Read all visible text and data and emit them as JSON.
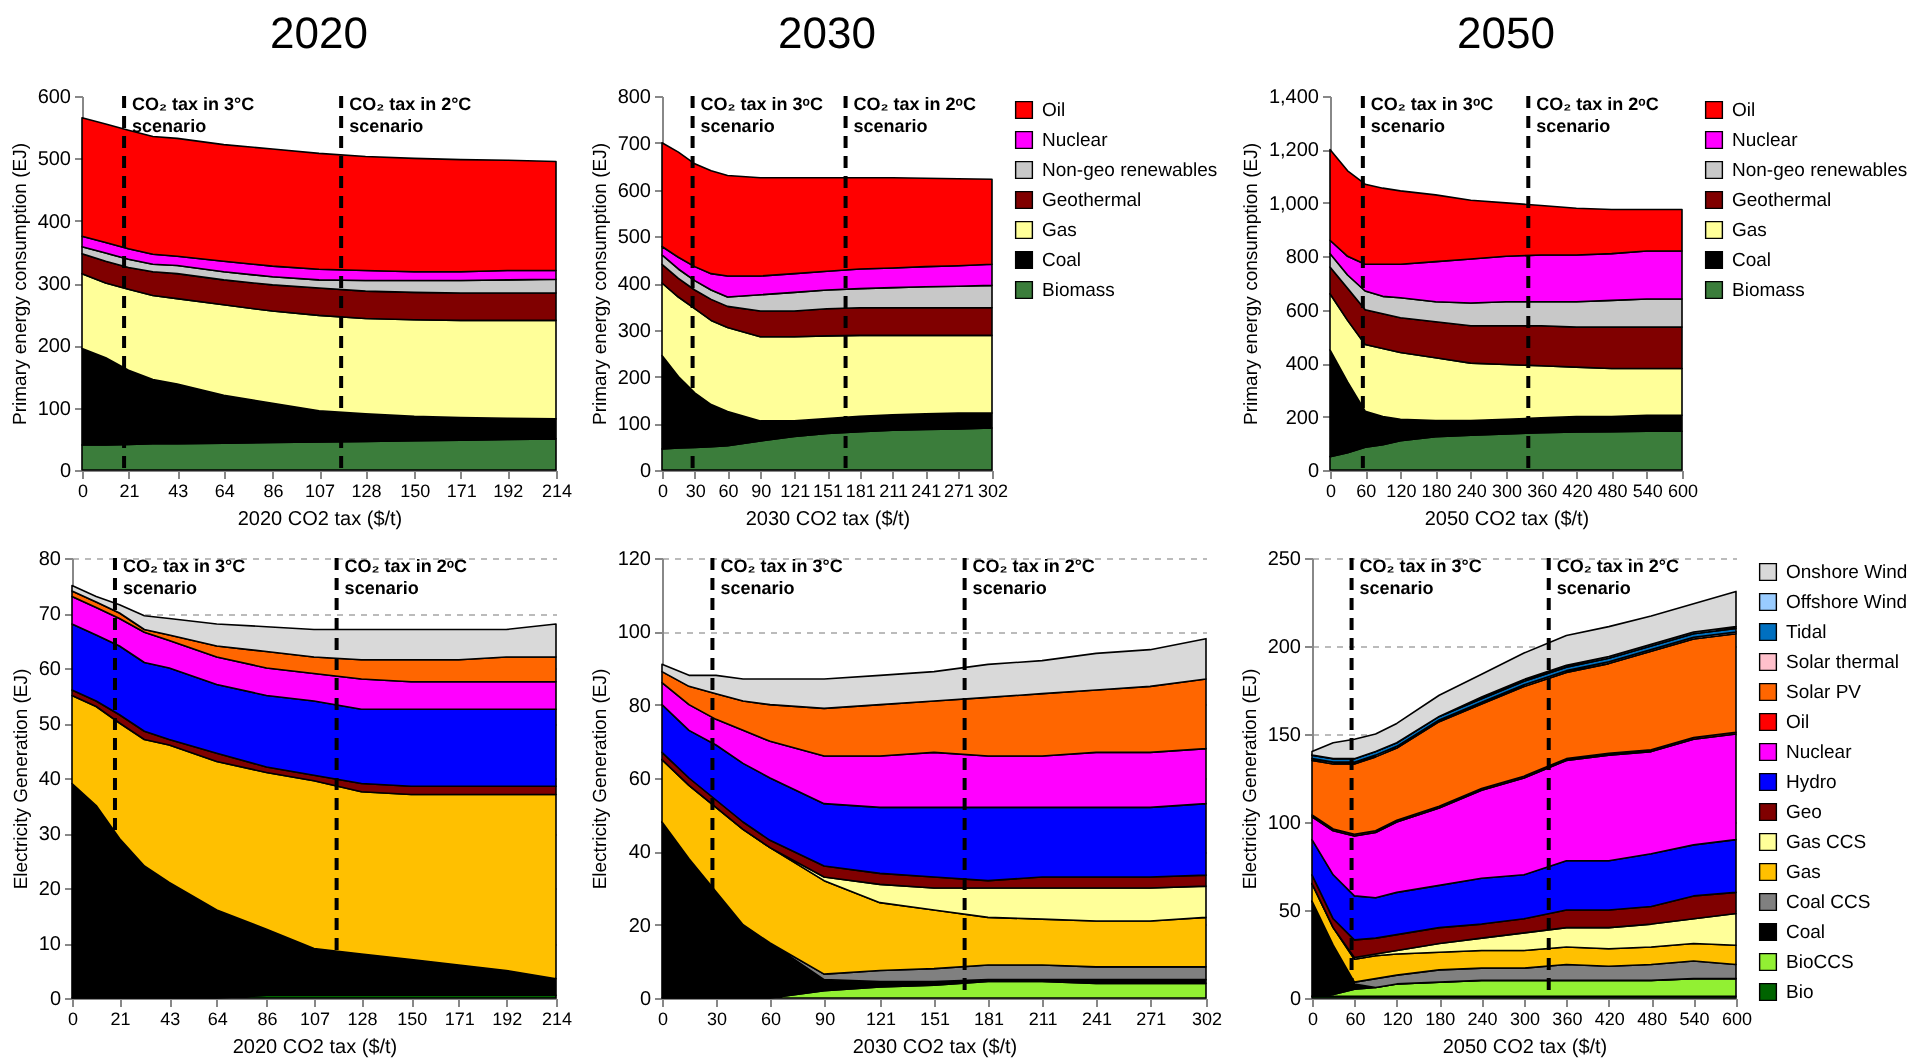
{
  "chart_data": [
    {
      "type": "area",
      "title": "2020",
      "xlabel": "2020 CO2 tax ($/t)",
      "ylabel": "Primary energy consumption (EJ)",
      "stacked": true,
      "x": [
        0,
        10.7,
        21,
        32,
        43,
        64,
        86,
        107,
        128,
        150,
        171,
        192,
        214
      ],
      "xlim": [
        0,
        214
      ],
      "xticks": [
        0,
        21,
        43,
        64,
        86,
        107,
        128,
        150,
        171,
        192,
        214
      ],
      "ylim": [
        0,
        600
      ],
      "yticks": [
        0,
        100,
        200,
        300,
        400,
        500,
        600
      ],
      "ref_lines": [
        {
          "axis": "x",
          "value": 19,
          "label": "CO₂ tax in 3°C\nscenario",
          "color": "#000000",
          "line_style": "dashed"
        },
        {
          "axis": "x",
          "value": 117,
          "label": "CO₂ tax in 2°C\nscenario",
          "color": "#000000",
          "line_style": "dashed"
        }
      ],
      "series": [
        {
          "color": "#3b7d3b",
          "values": [
            40,
            40,
            41,
            42,
            42,
            43,
            44,
            45,
            46,
            47,
            48,
            49,
            50
          ]
        },
        {
          "color": "#000000",
          "values": [
            155,
            140,
            119,
            103,
            96,
            77,
            63,
            50,
            44,
            39,
            36,
            34,
            32
          ]
        },
        {
          "color": "#ffff99",
          "values": [
            120,
            120,
            130,
            135,
            137,
            145,
            148,
            153,
            153,
            155,
            156,
            157,
            158
          ]
        },
        {
          "color": "#800000",
          "values": [
            32,
            35,
            35,
            38,
            40,
            40,
            42,
            44,
            44,
            44,
            44,
            44,
            44
          ]
        },
        {
          "color": "#c8c8c8",
          "values": [
            11,
            13,
            13,
            12,
            13,
            13,
            13,
            13,
            17,
            19,
            20,
            21,
            22
          ]
        },
        {
          "color": "#ff00ff",
          "values": [
            17,
            17,
            17,
            16,
            15,
            17,
            17,
            17,
            16,
            14,
            14,
            15,
            14
          ]
        },
        {
          "color": "#ff0000",
          "values": [
            190,
            190,
            190,
            189,
            189,
            187,
            188,
            186,
            183,
            182,
            180,
            177,
            175
          ]
        }
      ]
    },
    {
      "type": "area",
      "title": "2030",
      "xlabel": "2030 CO2 tax ($/t)",
      "ylabel": "Primary energy consumption (EJ)",
      "stacked": true,
      "legend": "right",
      "x": [
        0,
        15,
        30,
        45,
        60,
        90,
        121,
        151,
        181,
        211,
        241,
        271,
        302
      ],
      "xlim": [
        0,
        302
      ],
      "xticks": [
        0,
        30,
        60,
        90,
        121,
        151,
        181,
        211,
        241,
        271,
        302
      ],
      "ylim": [
        0,
        800
      ],
      "yticks": [
        0,
        100,
        200,
        300,
        400,
        500,
        600,
        700,
        800
      ],
      "ref_lines": [
        {
          "axis": "x",
          "value": 28,
          "label": "CO₂ tax in 3ᵒC\nscenario",
          "color": "#000000",
          "line_style": "dashed"
        },
        {
          "axis": "x",
          "value": 168,
          "label": "CO₂ tax in 2ᵒC\nscenario",
          "color": "#000000",
          "line_style": "dashed"
        }
      ],
      "series": [
        {
          "name": "Biomass",
          "color": "#3b7d3b",
          "values": [
            45,
            47,
            48,
            50,
            52,
            62,
            72,
            78,
            82,
            85,
            87,
            88,
            90
          ]
        },
        {
          "name": "Coal",
          "color": "#000000",
          "values": [
            200,
            153,
            117,
            90,
            73,
            43,
            33,
            32,
            33,
            33,
            33,
            34,
            32
          ]
        },
        {
          "name": "Gas",
          "color": "#ffff99",
          "values": [
            155,
            170,
            180,
            180,
            180,
            180,
            180,
            177,
            173,
            170,
            168,
            166,
            166
          ]
        },
        {
          "name": "Geothermal",
          "color": "#800000",
          "values": [
            40,
            40,
            40,
            45,
            45,
            55,
            55,
            58,
            59,
            59,
            59,
            59,
            59
          ]
        },
        {
          "name": "Non-geo renewables",
          "color": "#c8c8c8",
          "values": [
            20,
            20,
            20,
            20,
            20,
            35,
            40,
            40,
            41,
            43,
            45,
            46,
            48
          ]
        },
        {
          "name": "Nuclear",
          "color": "#ff00ff",
          "values": [
            18,
            25,
            30,
            35,
            45,
            40,
            40,
            40,
            42,
            42,
            43,
            44,
            45
          ]
        },
        {
          "name": "Oil",
          "color": "#ff0000",
          "values": [
            222,
            225,
            220,
            220,
            215,
            210,
            205,
            200,
            195,
            193,
            189,
            186,
            182
          ]
        }
      ]
    },
    {
      "type": "area",
      "title": "2050",
      "xlabel": "2050 CO2 tax ($/t)",
      "ylabel": "Primary energy consumption (EJ)",
      "stacked": true,
      "legend": "right",
      "x": [
        0,
        30,
        60,
        90,
        120,
        180,
        240,
        300,
        360,
        420,
        480,
        540,
        600
      ],
      "xlim": [
        0,
        600
      ],
      "xticks": [
        0,
        60,
        120,
        180,
        240,
        300,
        360,
        420,
        480,
        540,
        600
      ],
      "ylim": [
        0,
        1400
      ],
      "yticks": [
        0,
        200,
        400,
        600,
        800,
        {
          "value": 1000,
          "label": "1,000"
        },
        {
          "value": 1200,
          "label": "1,200"
        },
        {
          "value": 1400,
          "label": "1,400"
        }
      ],
      "ref_lines": [
        {
          "axis": "x",
          "value": 56,
          "label": "CO₂ tax in 3ᵒC\nscenario",
          "color": "#000000",
          "line_style": "dashed"
        },
        {
          "axis": "x",
          "value": 338,
          "label": "CO₂ tax in 2ᵒC\nscenario",
          "color": "#000000",
          "line_style": "dashed"
        }
      ],
      "series": [
        {
          "name": "Biomass",
          "color": "#3b7d3b",
          "values": [
            50,
            65,
            85,
            95,
            110,
            125,
            130,
            135,
            140,
            142,
            143,
            145,
            145
          ]
        },
        {
          "name": "Coal",
          "color": "#000000",
          "values": [
            400,
            265,
            135,
            105,
            80,
            60,
            55,
            55,
            55,
            58,
            57,
            60,
            60
          ]
        },
        {
          "name": "Gas",
          "color": "#ffff99",
          "values": [
            210,
            230,
            250,
            255,
            250,
            235,
            215,
            205,
            195,
            185,
            180,
            175,
            175
          ]
        },
        {
          "name": "Geothermal",
          "color": "#800000",
          "values": [
            100,
            120,
            130,
            130,
            130,
            135,
            140,
            145,
            150,
            150,
            155,
            155,
            155
          ]
        },
        {
          "name": "Non-geo renewables",
          "color": "#c8c8c8",
          "values": [
            50,
            50,
            70,
            65,
            75,
            75,
            85,
            90,
            90,
            95,
            100,
            105,
            105
          ]
        },
        {
          "name": "Nuclear",
          "color": "#ff00ff",
          "values": [
            50,
            70,
            100,
            120,
            125,
            150,
            165,
            170,
            175,
            175,
            175,
            180,
            180
          ]
        },
        {
          "name": "Oil",
          "color": "#ff0000",
          "values": [
            340,
            320,
            300,
            285,
            275,
            250,
            220,
            200,
            185,
            175,
            165,
            155,
            155
          ]
        }
      ]
    },
    {
      "type": "area",
      "xlabel": "2020 CO2 tax ($/t)",
      "ylabel": "Electricity Generation (EJ)",
      "stacked": true,
      "grid": "y",
      "x": [
        0,
        10.7,
        21,
        32,
        43,
        64,
        86,
        107,
        128,
        150,
        171,
        192,
        214
      ],
      "xlim": [
        0,
        214
      ],
      "xticks": [
        0,
        21,
        43,
        64,
        86,
        107,
        128,
        150,
        171,
        192,
        214
      ],
      "ylim": [
        0,
        80
      ],
      "yticks": [
        0,
        10,
        20,
        30,
        40,
        50,
        60,
        70,
        80
      ],
      "ref_lines": [
        {
          "axis": "x",
          "value": 19,
          "label": "CO₂ tax in 3°C\nscenario",
          "color": "#000000",
          "line_style": "dashed"
        },
        {
          "axis": "x",
          "value": 117,
          "label": "CO₂ tax in 2ᵒC\nscenario",
          "color": "#000000",
          "line_style": "dashed"
        }
      ],
      "series": [
        {
          "color": "#006400",
          "values": [
            0,
            0,
            0,
            0,
            0,
            0,
            0.5,
            0.5,
            0.5,
            0.5,
            0.5,
            0.5,
            0.5
          ]
        },
        {
          "color": "#000000",
          "values": [
            39,
            35,
            29,
            24,
            21,
            16,
            12,
            8.5,
            7.5,
            6.5,
            5.5,
            4.5,
            3
          ]
        },
        {
          "color": "#ffc000",
          "values": [
            16,
            18,
            21,
            23,
            25,
            27,
            28.5,
            30.5,
            29.5,
            30,
            31,
            32,
            33.5
          ]
        },
        {
          "color": "#800000",
          "values": [
            1,
            1,
            1.5,
            1.5,
            1,
            1.5,
            1,
            1,
            1.5,
            1.5,
            1.5,
            1.5,
            1.5
          ]
        },
        {
          "color": "#0000ff",
          "values": [
            12,
            12,
            12.5,
            12.5,
            13,
            12.5,
            13,
            13.5,
            13.5,
            14,
            14,
            14,
            14
          ]
        },
        {
          "color": "#ff00ff",
          "values": [
            5,
            5,
            5,
            5.5,
            5,
            5,
            5,
            5,
            5.5,
            5,
            5,
            5,
            5
          ]
        },
        {
          "color": "#ff6600",
          "values": [
            1,
            1,
            1,
            0.5,
            1,
            2,
            3,
            3,
            3.5,
            4,
            4,
            4.5,
            4.5
          ]
        },
        {
          "color": "#d9d9d9",
          "values": [
            1,
            1,
            1.5,
            2.5,
            3,
            4,
            4.5,
            5,
            5.5,
            5.5,
            5.5,
            5,
            6
          ]
        }
      ]
    },
    {
      "type": "area",
      "xlabel": "2030 CO2 tax ($/t)",
      "ylabel": "Electricity Generation (EJ)",
      "stacked": true,
      "grid": "y",
      "x": [
        0,
        15,
        30,
        45,
        60,
        90,
        121,
        151,
        181,
        211,
        241,
        271,
        302
      ],
      "xlim": [
        0,
        302
      ],
      "xticks": [
        0,
        30,
        60,
        90,
        121,
        151,
        181,
        211,
        241,
        271,
        302
      ],
      "ylim": [
        0,
        120
      ],
      "yticks": [
        0,
        20,
        40,
        60,
        80,
        100,
        120
      ],
      "ref_lines": [
        {
          "axis": "x",
          "value": 28,
          "label": "CO₂ tax in 3°C\nscenario",
          "color": "#000000",
          "line_style": "dashed"
        },
        {
          "axis": "x",
          "value": 168,
          "label": "CO₂ tax in 2°C\nscenario",
          "color": "#000000",
          "line_style": "dashed"
        }
      ],
      "series": [
        {
          "color": "#92f033",
          "values": [
            0,
            0,
            0,
            0,
            0,
            2,
            3,
            3.5,
            4.5,
            4.5,
            4,
            4,
            4
          ]
        },
        {
          "color": "#000000",
          "values": [
            48,
            38,
            29,
            20,
            15,
            3,
            1.5,
            1,
            0.5,
            0.5,
            1,
            1,
            1
          ]
        },
        {
          "color": "#808080",
          "values": [
            0,
            0,
            0,
            0,
            0,
            1.5,
            3,
            3.5,
            4,
            4,
            3.5,
            3.5,
            3.5
          ]
        },
        {
          "color": "#ffc000",
          "values": [
            17,
            20,
            23,
            26,
            26,
            25.5,
            18.5,
            16,
            13,
            12.5,
            12.5,
            12.5,
            13.5
          ]
        },
        {
          "color": "#ffff99",
          "values": [
            0,
            0,
            0,
            0,
            0,
            1,
            5,
            6,
            8,
            8.5,
            9,
            9,
            8.5
          ]
        },
        {
          "color": "#800000",
          "values": [
            2,
            2,
            2,
            2,
            2,
            3,
            3,
            3,
            2,
            3,
            3,
            3,
            3
          ]
        },
        {
          "color": "#0000ff",
          "values": [
            13,
            13,
            15,
            16,
            17,
            17,
            18,
            19,
            20,
            19,
            19,
            19,
            19.5
          ]
        },
        {
          "color": "#ff00ff",
          "values": [
            6,
            7,
            7,
            9,
            10,
            13,
            14,
            15,
            14,
            14,
            15,
            15,
            15
          ]
        },
        {
          "color": "#ff6600",
          "values": [
            3,
            5,
            7,
            8,
            10,
            13,
            14,
            14,
            16,
            17,
            17,
            18,
            19
          ]
        },
        {
          "color": "#d9d9d9",
          "values": [
            2,
            3,
            5,
            6,
            7,
            8,
            8,
            8,
            9,
            9,
            10,
            10,
            11
          ]
        }
      ]
    },
    {
      "type": "area",
      "xlabel": "2050 CO2 tax ($/t)",
      "ylabel": "Electricity Generation (EJ)",
      "stacked": true,
      "grid": "y",
      "legend": "right",
      "x": [
        0,
        30,
        60,
        90,
        120,
        180,
        240,
        300,
        360,
        420,
        480,
        540,
        600
      ],
      "xlim": [
        0,
        600
      ],
      "xticks": [
        0,
        60,
        120,
        180,
        240,
        300,
        360,
        420,
        480,
        540,
        600
      ],
      "ylim": [
        0,
        250
      ],
      "yticks": [
        0,
        50,
        100,
        150,
        200,
        250
      ],
      "ref_lines": [
        {
          "axis": "x",
          "value": 56,
          "label": "CO₂ tax in 3°C\nscenario",
          "color": "#000000",
          "line_style": "dashed"
        },
        {
          "axis": "x",
          "value": 335,
          "label": "CO₂ tax in 2°C\nscenario",
          "color": "#000000",
          "line_style": "dashed"
        }
      ],
      "series": [
        {
          "name": "Bio",
          "color": "#006400",
          "values": [
            1,
            1,
            1,
            1,
            1,
            1,
            1,
            1,
            1,
            1,
            1,
            1,
            1
          ]
        },
        {
          "name": "BioCCS",
          "color": "#92f033",
          "values": [
            0,
            1,
            4,
            5,
            7,
            8,
            9,
            9,
            9,
            9,
            9,
            10,
            10
          ]
        },
        {
          "name": "Coal",
          "color": "#000000",
          "values": [
            54,
            28,
            3,
            0,
            0,
            0,
            0,
            0,
            0,
            0,
            0,
            0,
            0
          ]
        },
        {
          "name": "Coal CCS",
          "color": "#808080",
          "values": [
            0,
            0,
            1,
            5,
            5,
            7,
            7,
            7,
            9,
            8,
            9,
            10,
            8
          ]
        },
        {
          "name": "Gas",
          "color": "#ffc000",
          "values": [
            10,
            10,
            13,
            13,
            12,
            10,
            10,
            10,
            10,
            10,
            10,
            10,
            11
          ]
        },
        {
          "name": "Gas CCS",
          "color": "#ffff99",
          "values": [
            0,
            0,
            1,
            1,
            2,
            5,
            7,
            10,
            11,
            12,
            13,
            14,
            18
          ]
        },
        {
          "name": "Geo",
          "color": "#800000",
          "values": [
            5,
            5,
            10,
            9,
            9,
            9,
            8,
            8,
            10,
            10,
            10,
            13,
            12
          ]
        },
        {
          "name": "Hydro",
          "color": "#0000ff",
          "values": [
            20,
            25,
            25,
            23,
            24,
            24,
            26,
            25,
            28,
            28,
            30,
            29,
            30
          ]
        },
        {
          "name": "Nuclear",
          "color": "#ff00ff",
          "values": [
            13,
            25,
            34,
            37,
            40,
            44,
            50,
            55,
            57,
            60,
            58,
            60,
            60
          ]
        },
        {
          "name": "Oil",
          "color": "#ff0000",
          "values": [
            1,
            1,
            1,
            1,
            1,
            1,
            1,
            1,
            1,
            1,
            1,
            1,
            1
          ]
        },
        {
          "name": "Solar PV",
          "color": "#ff6600",
          "values": [
            31,
            37,
            40,
            42,
            41,
            48,
            48,
            51,
            49,
            51,
            56,
            56,
            56
          ]
        },
        {
          "name": "Solar thermal",
          "color": "#ffc0cb",
          "values": [
            1,
            1,
            1,
            1,
            1,
            1,
            1,
            1,
            1,
            1,
            1,
            1,
            1
          ]
        },
        {
          "name": "Tidal",
          "color": "#0070c0",
          "values": [
            2,
            2,
            2,
            2,
            2,
            2,
            2,
            2,
            2,
            2,
            2,
            2,
            2
          ]
        },
        {
          "name": "Offshore Wind",
          "color": "#99ccff",
          "values": [
            0,
            0,
            0,
            0,
            0,
            0,
            1,
            1,
            1,
            1,
            1,
            1,
            1
          ]
        },
        {
          "name": "Onshore Wind",
          "color": "#d9d9d9",
          "values": [
            2,
            9,
            11,
            10,
            11,
            12,
            13,
            15,
            17,
            17,
            16,
            16,
            20
          ]
        }
      ]
    }
  ]
}
